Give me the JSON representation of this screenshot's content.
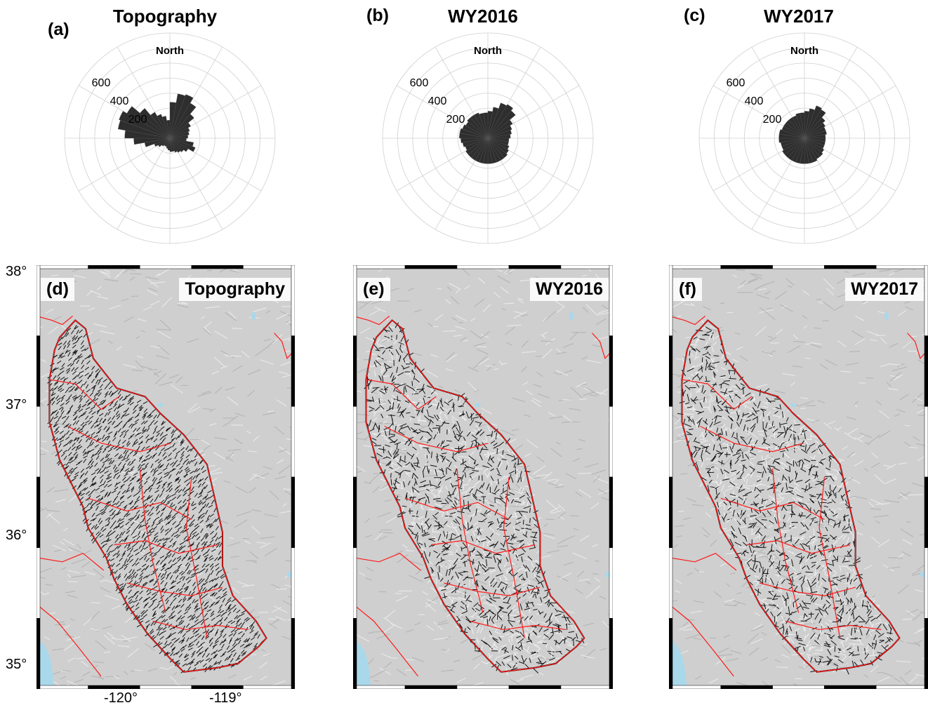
{
  "rose_panels": [
    {
      "letter": "(a)",
      "title": "Topography",
      "north_label": "North",
      "radial_ticks": [
        "600",
        "400",
        "200"
      ],
      "sector_lengths": [
        240,
        300,
        310,
        270,
        210,
        160,
        140,
        130,
        120,
        110,
        160,
        180,
        140,
        120,
        110,
        100,
        90,
        90,
        80,
        70,
        60,
        60,
        70,
        90,
        110,
        170,
        240,
        300,
        350,
        360,
        330,
        260,
        200,
        170,
        150,
        120
      ]
    },
    {
      "letter": "(b)",
      "title": "WY2016",
      "north_label": "North",
      "radial_ticks": [
        "600",
        "400",
        "200"
      ],
      "sector_lengths": [
        180,
        210,
        250,
        260,
        240,
        190,
        170,
        160,
        150,
        140,
        140,
        150,
        160,
        170,
        170,
        170,
        170,
        170,
        170,
        170,
        170,
        170,
        170,
        170,
        160,
        170,
        180,
        190,
        190,
        180,
        170,
        180,
        180,
        180,
        170,
        170
      ]
    },
    {
      "letter": "(c)",
      "title": "WY2017",
      "north_label": "North",
      "radial_ticks": [
        "600",
        "400",
        "200"
      ],
      "sector_lengths": [
        180,
        200,
        230,
        220,
        180,
        160,
        150,
        150,
        140,
        140,
        140,
        140,
        150,
        160,
        160,
        170,
        170,
        170,
        170,
        170,
        170,
        170,
        170,
        170,
        160,
        160,
        170,
        170,
        170,
        160,
        160,
        160,
        160,
        160,
        170,
        170
      ]
    }
  ],
  "map_panels": [
    {
      "letter": "(d)",
      "title": "Topography"
    },
    {
      "letter": "(e)",
      "title": "WY2016"
    },
    {
      "letter": "(f)",
      "title": "WY2017"
    }
  ],
  "map_axes": {
    "lat_labels": [
      "38°",
      "37°",
      "36°",
      "35°"
    ],
    "lon_labels": [
      "-120°",
      "-119°"
    ]
  },
  "colors": {
    "rose_fill": "#2e2e2e",
    "grid": "#d0d0d0",
    "terrain": "#cfcfcf",
    "boundary": "#ff1a1a",
    "water": "#a9d8ea",
    "vectors": "#000000"
  }
}
